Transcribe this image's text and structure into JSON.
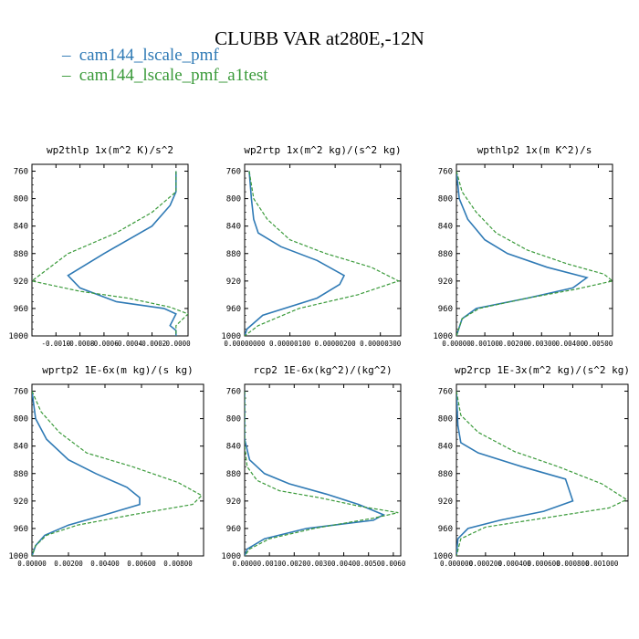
{
  "title": "CLUBB VAR at280E,-12N",
  "legend": [
    {
      "label": "cam144_lscale_pmf",
      "color": "#2f7ab5",
      "dash": ""
    },
    {
      "label": "cam144_lscale_pmf_a1test",
      "color": "#3a9a3a",
      "dash": "4,2"
    }
  ],
  "chart_data": [
    {
      "type": "line",
      "title": "wp2thlp  1x(m^2 K)/s^2",
      "xlim": [
        -0.0012,
        0.0001
      ],
      "xticks": [
        -0.001,
        -0.0008,
        -0.0006,
        -0.0004,
        -0.0002,
        0.0
      ],
      "xticklabels": [
        "-0.0010",
        "-0.0008",
        "-0.0006",
        "-0.0004",
        "-0.0002",
        "-0.0000"
      ],
      "ylim": [
        1000,
        750
      ],
      "yticks": [
        760,
        800,
        840,
        880,
        920,
        960,
        1000
      ],
      "series": [
        {
          "name": "cam144_lscale_pmf",
          "color": "#2f7ab5",
          "dash": "",
          "x": [
            0.0,
            0.0,
            -5e-05,
            -0.0002,
            -0.0006,
            -0.0009,
            -0.0008,
            -0.0005,
            -0.0001,
            0.0,
            -5e-05,
            0.0,
            0.0
          ],
          "y": [
            760,
            790,
            810,
            840,
            880,
            912,
            930,
            950,
            960,
            968,
            985,
            992,
            1000
          ]
        },
        {
          "name": "cam144_lscale_pmf_a1test",
          "color": "#3a9a3a",
          "dash": "4,2",
          "x": [
            0.0,
            0.0,
            -0.0002,
            -0.0005,
            -0.0009,
            -0.0012,
            -0.0008,
            -0.0004,
            -5e-05,
            0.0001,
            0.0,
            0.0
          ],
          "y": [
            760,
            790,
            820,
            850,
            880,
            920,
            935,
            945,
            958,
            968,
            985,
            1000
          ]
        }
      ]
    },
    {
      "type": "line",
      "title": "wp2rtp  1x(m^2 kg)/(s^2 kg)",
      "xlim": [
        0,
        3.45e-06
      ],
      "xticks": [
        0,
        1e-06,
        2e-06,
        3e-06
      ],
      "xticklabels": [
        "0.00000000",
        "0.00000100",
        "0.00000200",
        "0.00000300"
      ],
      "ylim": [
        1000,
        750
      ],
      "yticks": [
        760,
        800,
        840,
        880,
        920,
        960,
        1000
      ],
      "series": [
        {
          "name": "cam144_lscale_pmf",
          "color": "#2f7ab5",
          "dash": "",
          "x": [
            1e-07,
            1.5e-07,
            2e-07,
            3e-07,
            8e-07,
            1.6e-06,
            2.2e-06,
            2.1e-06,
            1.6e-06,
            4e-07,
            5e-08,
            0.0
          ],
          "y": [
            760,
            800,
            830,
            850,
            870,
            890,
            912,
            925,
            945,
            970,
            990,
            1000
          ]
        },
        {
          "name": "cam144_lscale_pmf_a1test",
          "color": "#3a9a3a",
          "dash": "4,2",
          "x": [
            1e-07,
            2e-07,
            5e-07,
            1e-06,
            1.8e-06,
            2.8e-06,
            3.4e-06,
            2.5e-06,
            1.2e-06,
            3e-07,
            0.0
          ],
          "y": [
            760,
            800,
            830,
            860,
            880,
            900,
            920,
            940,
            960,
            985,
            1000
          ]
        }
      ]
    },
    {
      "type": "line",
      "title": "wpthlp2  1x(m K^2)/s",
      "xlim": [
        0,
        0.0055
      ],
      "xticks": [
        0,
        0.001,
        0.002,
        0.003,
        0.004,
        0.005
      ],
      "xticklabels": [
        "0.00000",
        "0.00100",
        "0.00200",
        "0.00300",
        "0.00400",
        "0.00500"
      ],
      "ylim": [
        1000,
        750
      ],
      "yticks": [
        760,
        800,
        840,
        880,
        920,
        960,
        1000
      ],
      "series": [
        {
          "name": "cam144_lscale_pmf",
          "color": "#2f7ab5",
          "dash": "",
          "x": [
            0.0,
            0.0001,
            0.0004,
            0.001,
            0.0018,
            0.0032,
            0.0046,
            0.0041,
            0.0025,
            0.0007,
            0.0002,
            0.0
          ],
          "y": [
            760,
            800,
            830,
            860,
            880,
            900,
            915,
            930,
            945,
            960,
            975,
            1000
          ]
        },
        {
          "name": "cam144_lscale_pmf_a1test",
          "color": "#3a9a3a",
          "dash": "4,2",
          "x": [
            0.0,
            0.0002,
            0.0007,
            0.0014,
            0.0025,
            0.0039,
            0.0052,
            0.0055,
            0.0042,
            0.0025,
            0.0008,
            0.0002,
            0.0
          ],
          "y": [
            760,
            790,
            820,
            850,
            875,
            895,
            910,
            920,
            932,
            945,
            960,
            975,
            1000
          ]
        }
      ]
    },
    {
      "type": "line",
      "title": "wprtp2  1E-6x(m kg)/(s kg)",
      "xlim": [
        0,
        0.0094
      ],
      "xticks": [
        0,
        0.002,
        0.004,
        0.006,
        0.008
      ],
      "xticklabels": [
        "0.00000",
        "0.00200",
        "0.00400",
        "0.00600",
        "0.00800"
      ],
      "ylim": [
        1000,
        750
      ],
      "yticks": [
        760,
        800,
        840,
        880,
        920,
        960,
        1000
      ],
      "series": [
        {
          "name": "cam144_lscale_pmf",
          "color": "#2f7ab5",
          "dash": "",
          "x": [
            0.0,
            0.0002,
            0.0008,
            0.002,
            0.0035,
            0.0052,
            0.0059,
            0.0059,
            0.004,
            0.002,
            0.0007,
            0.0002,
            0.0
          ],
          "y": [
            760,
            800,
            830,
            860,
            880,
            900,
            915,
            925,
            940,
            955,
            970,
            985,
            1000
          ]
        },
        {
          "name": "cam144_lscale_pmf_a1test",
          "color": "#3a9a3a",
          "dash": "4,2",
          "x": [
            0.0,
            0.0005,
            0.0015,
            0.003,
            0.0055,
            0.008,
            0.0093,
            0.0088,
            0.0055,
            0.0025,
            0.0008,
            0.0002,
            0.0
          ],
          "y": [
            760,
            790,
            820,
            850,
            870,
            893,
            912,
            925,
            940,
            955,
            970,
            985,
            1000
          ]
        }
      ]
    },
    {
      "type": "line",
      "title": "rcp2  1E-6x(kg^2)/(kg^2)",
      "xlim": [
        0,
        0.0063
      ],
      "xticks": [
        0,
        0.001,
        0.002,
        0.003,
        0.004,
        0.005,
        0.006
      ],
      "xticklabels": [
        "0.0000",
        "0.0010",
        "0.0020",
        "0.0030",
        "0.0040",
        "0.0050",
        "0.0060"
      ],
      "ylim": [
        1000,
        750
      ],
      "yticks": [
        760,
        800,
        840,
        880,
        920,
        960,
        1000
      ],
      "series": [
        {
          "name": "cam144_lscale_pmf",
          "color": "#2f7ab5",
          "dash": "",
          "x": [
            0.0,
            0.0,
            0.0002,
            0.0008,
            0.0018,
            0.0033,
            0.0046,
            0.0056,
            0.0052,
            0.0025,
            0.0008,
            0.0001,
            0.0
          ],
          "y": [
            760,
            830,
            860,
            880,
            895,
            910,
            925,
            940,
            948,
            960,
            975,
            990,
            1000
          ]
        },
        {
          "name": "cam144_lscale_pmf_a1test",
          "color": "#3a9a3a",
          "dash": "4,2",
          "x": [
            0.0,
            0.0,
            0.0001,
            0.0005,
            0.0014,
            0.003,
            0.0047,
            0.0062,
            0.0052,
            0.0028,
            0.001,
            0.0002,
            0.0
          ],
          "y": [
            760,
            840,
            870,
            890,
            905,
            915,
            928,
            937,
            945,
            960,
            975,
            990,
            1000
          ]
        }
      ]
    },
    {
      "type": "line",
      "title": "wp2rcp  1E-3x(m^2 kg)/(s^2 kg)",
      "xlim": [
        0,
        0.00118
      ],
      "xticks": [
        0,
        0.0002,
        0.0004,
        0.0006,
        0.0008,
        0.001
      ],
      "xticklabels": [
        "0.000000",
        "0.000200",
        "0.000400",
        "0.000600",
        "0.000800",
        "0.001000"
      ],
      "ylim": [
        1000,
        750
      ],
      "yticks": [
        760,
        800,
        840,
        880,
        920,
        960,
        1000
      ],
      "series": [
        {
          "name": "cam144_lscale_pmf",
          "color": "#2f7ab5",
          "dash": "",
          "x": [
            0.0,
            1e-05,
            3e-05,
            0.00015,
            0.00045,
            0.00075,
            0.0008,
            0.0006,
            0.0003,
            8e-05,
            1e-05,
            0.0
          ],
          "y": [
            760,
            810,
            835,
            850,
            870,
            888,
            920,
            935,
            948,
            960,
            975,
            1000
          ]
        },
        {
          "name": "cam144_lscale_pmf_a1test",
          "color": "#3a9a3a",
          "dash": "4,2",
          "x": [
            0.0,
            3e-05,
            0.00015,
            0.0004,
            0.0007,
            0.001,
            0.00117,
            0.00105,
            0.0006,
            0.0002,
            3e-05,
            0.0
          ],
          "y": [
            760,
            795,
            820,
            848,
            870,
            895,
            918,
            930,
            945,
            958,
            975,
            1000
          ]
        }
      ]
    }
  ]
}
